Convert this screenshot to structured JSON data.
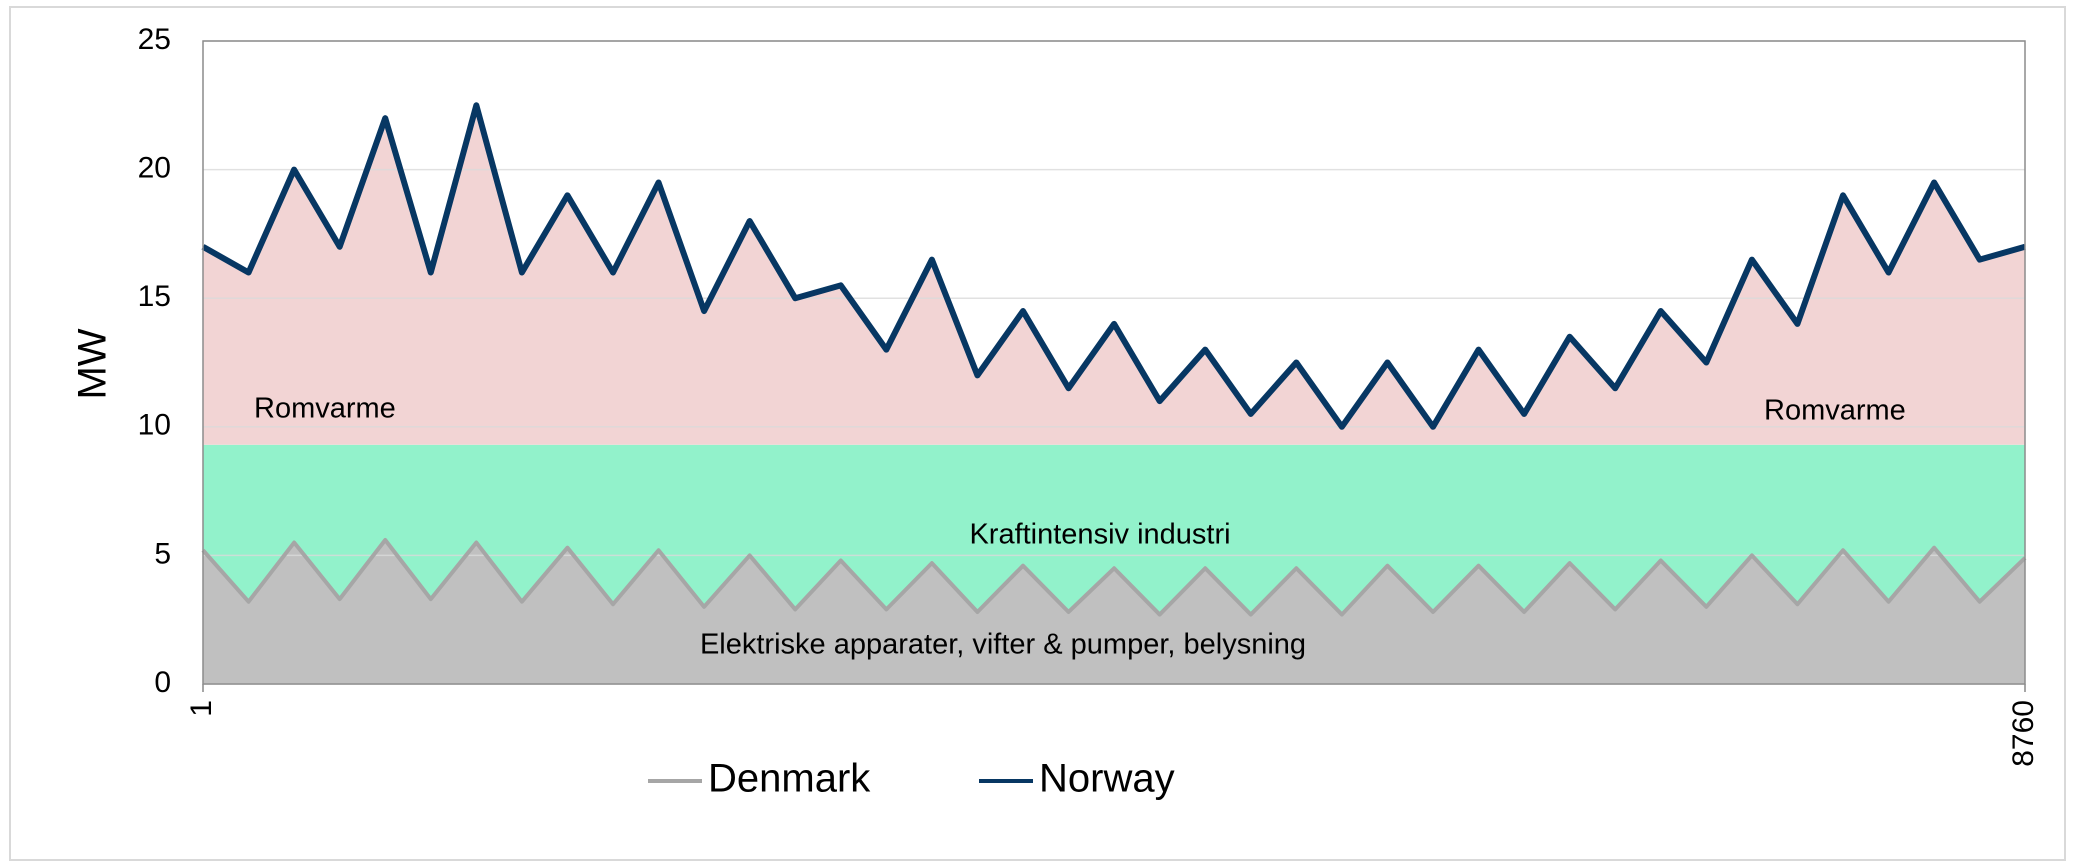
{
  "chart_data": {
    "type": "line",
    "y_label": "MW",
    "xlim": [
      1,
      8760
    ],
    "xticks": [
      1,
      8760
    ],
    "ylim": [
      0,
      25
    ],
    "yticks": [
      0,
      5,
      10,
      15,
      20,
      25
    ],
    "grid": true,
    "legend": "bottom",
    "bands": [
      {
        "label": "Kraftintensiv industri",
        "top": 9.3,
        "color": "#92f2cb"
      }
    ],
    "annotations": [
      "Romvarme",
      "Romvarme",
      "Elektriske apparater, vifter & pumper, belysning"
    ],
    "x": [
      1,
      220,
      439,
      658,
      877,
      1096,
      1315,
      1534,
      1753,
      1972,
      2191,
      2410,
      2629,
      2848,
      3067,
      3286,
      3505,
      3724,
      3943,
      4162,
      4381,
      4600,
      4819,
      5038,
      5257,
      5476,
      5695,
      5914,
      6133,
      6352,
      6571,
      6790,
      7009,
      7228,
      7447,
      7666,
      7885,
      8104,
      8323,
      8542,
      8760
    ],
    "series": [
      {
        "name": "Denmark",
        "color": "#a6a6a6",
        "fill": "#c0c0c0",
        "values": [
          5.2,
          3.2,
          5.5,
          3.3,
          5.6,
          3.3,
          5.5,
          3.2,
          5.3,
          3.1,
          5.2,
          3.0,
          5.0,
          2.9,
          4.8,
          2.9,
          4.7,
          2.8,
          4.6,
          2.8,
          4.5,
          2.7,
          4.5,
          2.7,
          4.5,
          2.7,
          4.6,
          2.8,
          4.6,
          2.8,
          4.7,
          2.9,
          4.8,
          3.0,
          5.0,
          3.1,
          5.2,
          3.2,
          5.3,
          3.2,
          4.9
        ]
      },
      {
        "name": "Norway",
        "color": "#073763",
        "fill": "#f2d4d4",
        "values": [
          17,
          16,
          20,
          17,
          22,
          16,
          22.5,
          16,
          19,
          16,
          19.5,
          14.5,
          18,
          15,
          15.5,
          13,
          16.5,
          12,
          14.5,
          11.5,
          14,
          11,
          13,
          10.5,
          12.5,
          10,
          12.5,
          10,
          13,
          10.5,
          13.5,
          11.5,
          14.5,
          12.5,
          16.5,
          14,
          19,
          16,
          19.5,
          16.5,
          17
        ]
      }
    ]
  }
}
